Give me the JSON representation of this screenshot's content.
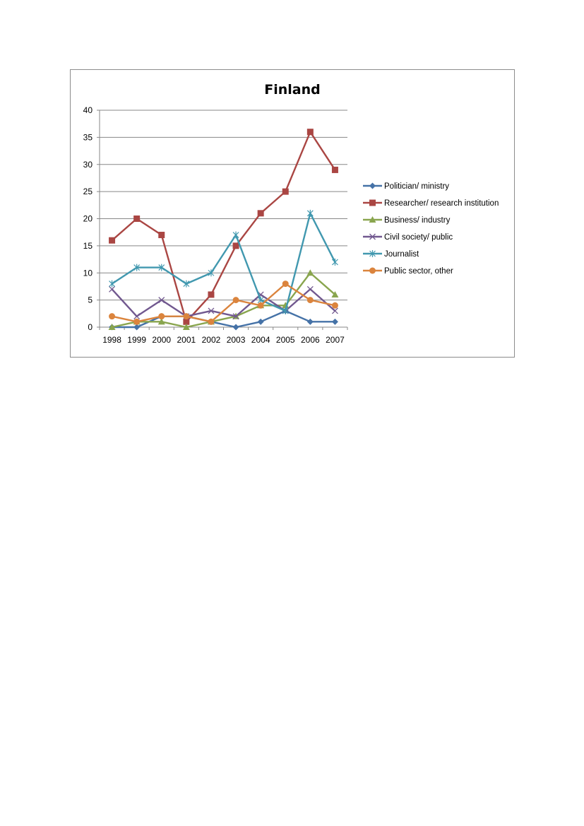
{
  "chart_data": {
    "type": "line",
    "title": "Finland",
    "xlabel": "",
    "ylabel": "",
    "categories": [
      "1998",
      "1999",
      "2000",
      "2001",
      "2002",
      "2003",
      "2004",
      "2005",
      "2006",
      "2007"
    ],
    "ylim": [
      0,
      40
    ],
    "yticks": [
      "0",
      "5",
      "10",
      "15",
      "20",
      "25",
      "30",
      "35",
      "40"
    ],
    "grid": true,
    "legend_position": "right",
    "series": [
      {
        "name": "Politician/ ministry",
        "color": "#4572a7",
        "marker": "diamond",
        "values": [
          0,
          0,
          2,
          2,
          1,
          0,
          1,
          3,
          1,
          1
        ]
      },
      {
        "name": "Researcher/ research institution",
        "color": "#aa4643",
        "marker": "square",
        "values": [
          16,
          20,
          17,
          1,
          6,
          15,
          21,
          25,
          36,
          29
        ]
      },
      {
        "name": "Business/ industry",
        "color": "#89a54e",
        "marker": "triangle",
        "values": [
          0,
          1,
          1,
          0,
          1,
          2,
          4,
          4,
          10,
          6
        ]
      },
      {
        "name": "Civil society/ public",
        "color": "#71588f",
        "marker": "x",
        "values": [
          7,
          2,
          5,
          2,
          3,
          2,
          6,
          3,
          7,
          3
        ]
      },
      {
        "name": "Journalist",
        "color": "#4198af",
        "marker": "star",
        "values": [
          8,
          11,
          11,
          8,
          10,
          17,
          5,
          3,
          21,
          12
        ]
      },
      {
        "name": "Public sector, other",
        "color": "#db843d",
        "marker": "circle",
        "values": [
          2,
          1,
          2,
          2,
          1,
          5,
          4,
          8,
          5,
          4
        ]
      }
    ]
  }
}
